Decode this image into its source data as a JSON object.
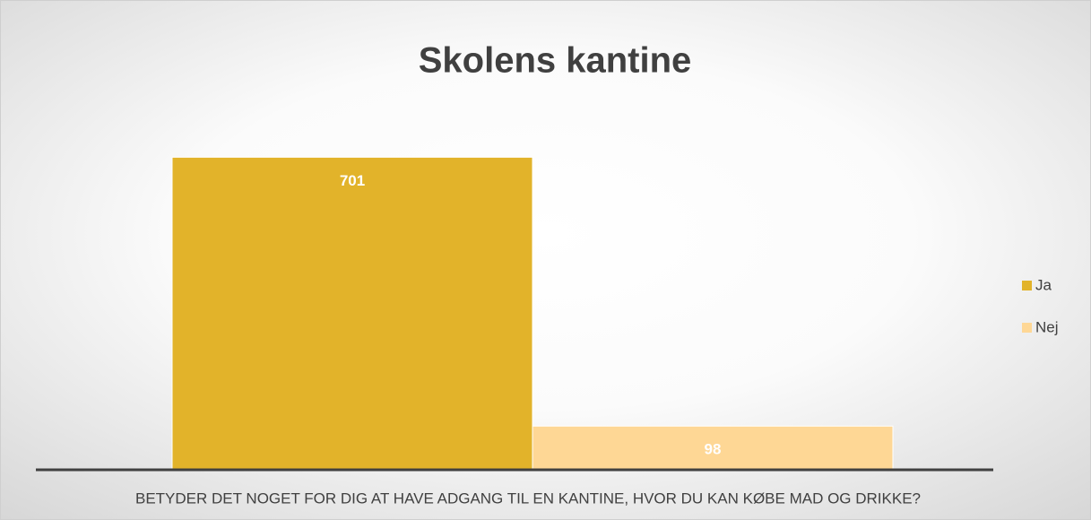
{
  "chart_data": {
    "type": "bar",
    "title": "Skolens kantine",
    "categories": [
      "BETYDER DET NOGET FOR DIG AT HAVE ADGANG TIL EN KANTINE, HVOR DU KAN KØBE MAD OG DRIKKE?"
    ],
    "series": [
      {
        "name": "Ja",
        "color": "#e2b32a",
        "values": [
          701
        ]
      },
      {
        "name": "Nej",
        "color": "#fed795",
        "values": [
          98
        ]
      }
    ],
    "ylim": [
      0,
      750
    ],
    "legend": "right"
  }
}
